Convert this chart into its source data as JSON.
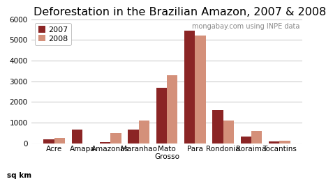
{
  "title": "Deforestation in the Brazilian Amazon, 2007 & 2008",
  "categories": [
    "Acre",
    "Amapa",
    "Amazonas",
    "Maranhao",
    "Mato\nGrosso",
    "Para",
    "Rondonia",
    "Roraima",
    "Tocantins"
  ],
  "values_2007": [
    200,
    650,
    60,
    650,
    2700,
    5450,
    1620,
    320,
    105
  ],
  "values_2008": [
    250,
    0,
    500,
    1100,
    3300,
    5200,
    1100,
    600,
    130
  ],
  "color_2007": "#8B2525",
  "color_2008": "#D4907A",
  "ylim": [
    0,
    6000
  ],
  "yticks": [
    0,
    1000,
    2000,
    3000,
    4000,
    5000,
    6000
  ],
  "annotation": "mongabay.com using INPE data",
  "sqkm_label": "sq km",
  "legend_labels": [
    "2007",
    "2008"
  ],
  "background_color": "#ffffff",
  "grid_color": "#cccccc",
  "title_fontsize": 11.5,
  "tick_fontsize": 7.5,
  "annot_fontsize": 7,
  "legend_fontsize": 8
}
